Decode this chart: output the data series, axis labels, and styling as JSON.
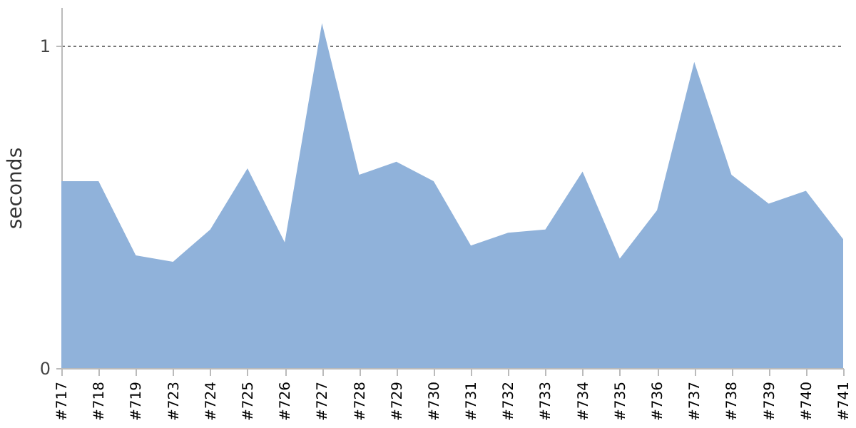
{
  "chart_data": {
    "type": "area",
    "ylabel": "seconds",
    "categories": [
      "#717",
      "#718",
      "#719",
      "#723",
      "#724",
      "#725",
      "#726",
      "#727",
      "#728",
      "#729",
      "#730",
      "#731",
      "#732",
      "#733",
      "#734",
      "#735",
      "#736",
      "#737",
      "#738",
      "#739",
      "#740",
      "#741"
    ],
    "series": [
      {
        "color": "#90b2da",
        "values": [
          0.58,
          0.58,
          0.35,
          0.33,
          0.43,
          0.62,
          0.39,
          1.07,
          0.6,
          0.64,
          0.58,
          0.38,
          0.42,
          0.43,
          0.61,
          0.34,
          0.49,
          0.95,
          0.6,
          0.51,
          0.55,
          0.4
        ]
      }
    ],
    "ylim": [
      0,
      1.12
    ],
    "yticks": [
      0,
      1
    ],
    "grid": "y"
  }
}
